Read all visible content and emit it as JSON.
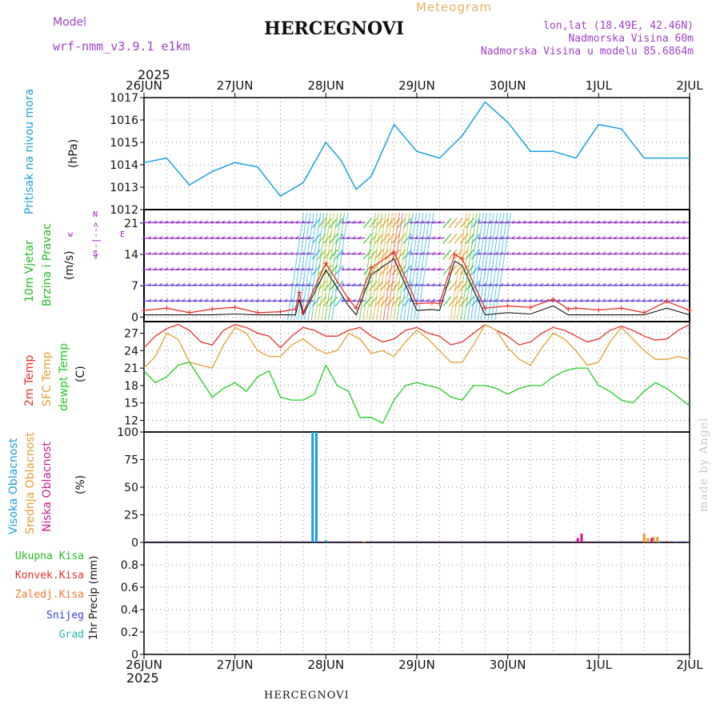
{
  "header": {
    "model_label": "Model",
    "model_name": "wrf-nmm_v3.9.1 e1km",
    "title": "HERCEGNOVI",
    "subtitle": "Meteogram",
    "coords": "lon,lat (18.49E, 42.46N)",
    "elevation": "Nadmorska Visina 60m",
    "model_elevation": "Nadmorska Visina u modelu 85.6864m",
    "year_top": "2025",
    "year_bottom": "2025",
    "footer_title": "HERCEGNOVI",
    "watermark": "made by Angel"
  },
  "colors": {
    "pressure": "#1a9fe0",
    "temp2m": "#e8302a",
    "sfc": "#e0a030",
    "dew": "#22cc22",
    "high_cloud": "#1a9fe0",
    "mid_cloud": "#e0a030",
    "low_cloud": "#cc1a8c",
    "conv": "#e8302a",
    "freezing": "#f07830",
    "snow": "#3a3ae0",
    "hail": "#20c0b0",
    "wind_label": "#22bb22",
    "compass": "#a020c0"
  },
  "chart_data": [
    {
      "type": "line",
      "panel": "pressure",
      "ylabel": [
        "Pritisak na nivou mora",
        "(hPa)"
      ],
      "ylim": [
        1012,
        1017
      ],
      "yticks": [
        1012,
        1013,
        1014,
        1015,
        1016,
        1017
      ],
      "x_hours": [
        0,
        6,
        12,
        18,
        24,
        30,
        36,
        42,
        48,
        52,
        56,
        60,
        66,
        72,
        78,
        84,
        90,
        96,
        102,
        108,
        114,
        120,
        126,
        132,
        138,
        144
      ],
      "values": [
        1014.1,
        1014.3,
        1013.1,
        1013.7,
        1014.1,
        1013.9,
        1012.6,
        1013.2,
        1015.0,
        1014.2,
        1012.9,
        1013.5,
        1015.8,
        1014.6,
        1014.3,
        1015.3,
        1016.8,
        1015.9,
        1014.6,
        1014.6,
        1014.3,
        1015.8,
        1015.6,
        1014.3,
        1014.3,
        1014.3
      ],
      "grid": true
    },
    {
      "type": "line",
      "panel": "wind",
      "ylabel": [
        "10m Vjetar",
        "Brzina i Pravac",
        "(m/s)"
      ],
      "compass": [
        "N",
        "<--|-->",
        "w",
        "E",
        "S"
      ],
      "ylim": [
        -1,
        24
      ],
      "yticks": [
        0,
        7,
        14,
        21
      ],
      "barb_rows": [
        21,
        17.5,
        14,
        10.5,
        7,
        3.5
      ],
      "x_hours": [
        0,
        6,
        12,
        18,
        24,
        30,
        36,
        40,
        41,
        42,
        48,
        54,
        56,
        60,
        66,
        72,
        76,
        78,
        82,
        84,
        90,
        96,
        102,
        108,
        112,
        114,
        120,
        126,
        132,
        138,
        144
      ],
      "values": [
        1.5,
        2.0,
        1.0,
        1.8,
        2.2,
        1.0,
        1.2,
        1.8,
        5.5,
        1.0,
        12.0,
        4.0,
        2.0,
        11.0,
        14.5,
        3.0,
        3.2,
        3.0,
        14.0,
        13.0,
        2.0,
        2.5,
        2.2,
        4.0,
        1.8,
        2.0,
        1.6,
        2.0,
        1.0,
        3.5,
        1.5
      ],
      "grid": true
    },
    {
      "type": "line",
      "panel": "temperature",
      "ylabel": [
        "2m Temp",
        "SFC Temp",
        "dewpt Temp",
        "(C)"
      ],
      "ylim": [
        10,
        29
      ],
      "yticks": [
        12,
        15,
        18,
        21,
        24,
        27
      ],
      "x_hours": [
        0,
        3,
        6,
        9,
        12,
        15,
        18,
        21,
        24,
        27,
        30,
        33,
        36,
        39,
        42,
        45,
        48,
        51,
        54,
        57,
        60,
        63,
        66,
        69,
        72,
        75,
        78,
        81,
        84,
        87,
        90,
        93,
        96,
        99,
        102,
        105,
        108,
        111,
        114,
        117,
        120,
        123,
        126,
        129,
        132,
        135,
        138,
        141,
        144
      ],
      "series": [
        {
          "name": "2m Temp",
          "values": [
            24.5,
            26.5,
            27.8,
            28.5,
            27.5,
            25.5,
            25.0,
            27.5,
            28.5,
            28.0,
            27.0,
            26.5,
            24.5,
            26.5,
            28.0,
            27.5,
            26.5,
            26.5,
            27.5,
            28.0,
            26.5,
            25.5,
            26.0,
            27.5,
            28.0,
            27.0,
            26.5,
            25.0,
            25.5,
            27.0,
            28.5,
            27.5,
            26.5,
            25.0,
            25.5,
            27.0,
            28.0,
            27.5,
            26.5,
            25.5,
            26.0,
            27.5,
            28.2,
            27.5,
            26.5,
            25.8,
            26.0,
            27.5,
            28.5
          ]
        },
        {
          "name": "SFC Temp",
          "values": [
            21.0,
            23.0,
            27.0,
            26.0,
            22.0,
            21.5,
            21.0,
            25.0,
            28.0,
            27.0,
            24.0,
            23.0,
            23.0,
            25.0,
            26.0,
            24.5,
            23.5,
            24.0,
            27.0,
            26.0,
            23.5,
            24.0,
            23.0,
            25.5,
            27.5,
            26.0,
            24.0,
            22.0,
            22.0,
            25.0,
            28.5,
            27.5,
            24.5,
            22.5,
            21.5,
            24.5,
            27.0,
            26.0,
            24.0,
            21.5,
            22.0,
            25.5,
            28.0,
            26.0,
            24.0,
            22.5,
            22.5,
            23.0,
            22.5
          ]
        },
        {
          "name": "dewpt Temp",
          "values": [
            20.5,
            18.5,
            19.5,
            21.5,
            22.0,
            19.0,
            16.0,
            17.5,
            18.5,
            17.0,
            19.5,
            20.5,
            16.0,
            15.5,
            15.5,
            16.5,
            21.5,
            18.0,
            17.0,
            12.5,
            12.5,
            11.5,
            15.5,
            18.0,
            18.5,
            18.0,
            17.5,
            16.0,
            15.5,
            18.0,
            18.0,
            17.5,
            16.5,
            17.5,
            18.0,
            18.0,
            19.5,
            20.5,
            21.0,
            21.0,
            18.0,
            17.0,
            15.5,
            15.0,
            17.0,
            18.5,
            17.5,
            16.0,
            14.5
          ]
        }
      ],
      "grid": true
    },
    {
      "type": "bar",
      "panel": "cloud",
      "ylabel": [
        "Visoka Oblacnost",
        "Srednja Oblacnost",
        "Niska Oblacnost",
        "(%)"
      ],
      "ylim": [
        0,
        100
      ],
      "yticks": [
        0,
        25,
        50,
        75,
        100
      ],
      "series": [
        {
          "name": "Visoka Oblacnost",
          "x_hours": [
            44.5,
            45.5,
            48.0,
            136.0,
            140.5,
            143.5
          ],
          "values": [
            100,
            100,
            2,
            1,
            1,
            1
          ]
        },
        {
          "name": "Srednja Oblacnost",
          "x_hours": [
            58.0,
            132.0,
            133.0,
            134.5,
            135.5
          ],
          "values": [
            1,
            8,
            4,
            5,
            5
          ]
        },
        {
          "name": "Niska Oblacnost",
          "x_hours": [
            114.5,
            115.5,
            134.0
          ],
          "values": [
            4,
            8,
            4
          ]
        }
      ],
      "grid": true
    },
    {
      "type": "bar",
      "panel": "precipitation",
      "ylabel": [
        "1hr Precip (mm)"
      ],
      "legend": [
        "Ukupna Kisa",
        "Konvek.Kisa",
        "Zaledj.Kisa",
        "Snijeg",
        "Grad"
      ],
      "ylim": [
        0,
        1.0
      ],
      "yticks": [
        0,
        0.2,
        0.4,
        0.6,
        0.8
      ],
      "values": [],
      "grid": true
    }
  ],
  "x_axis": {
    "range_hours": [
      0,
      144
    ],
    "labels": [
      "26JUN",
      "27JUN",
      "28JUN",
      "29JUN",
      "30JUN",
      "1JUL",
      "2JUL"
    ]
  }
}
